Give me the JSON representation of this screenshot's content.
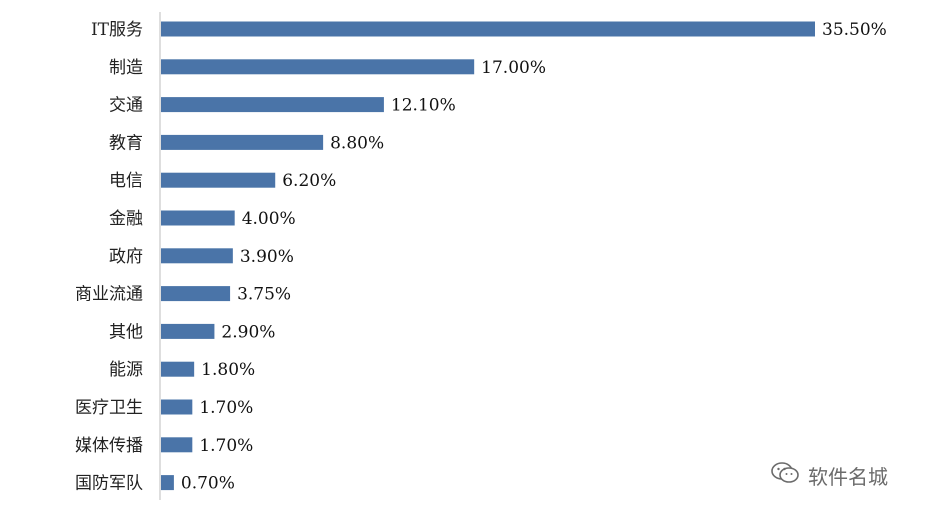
{
  "chart_data": {
    "type": "bar",
    "orientation": "horizontal",
    "categories": [
      "IT服务",
      "制造",
      "交通",
      "教育",
      "电信",
      "金融",
      "政府",
      "商业流通",
      "其他",
      "能源",
      "医疗卫生",
      "媒体传播",
      "国防军队"
    ],
    "values": [
      35.5,
      17.0,
      12.1,
      8.8,
      6.2,
      4.0,
      3.9,
      3.75,
      2.9,
      1.8,
      1.7,
      1.7,
      0.7
    ],
    "data_labels": [
      "35.50%",
      "17.00%",
      "12.10%",
      "8.80%",
      "6.20%",
      "4.00%",
      "3.90%",
      "3.75%",
      "2.90%",
      "1.80%",
      "1.70%",
      "1.70%",
      "0.70%"
    ],
    "unit": "%",
    "xlim": [
      0,
      35.5
    ],
    "grid": false,
    "legend": "none",
    "bar_color": "#4a74a8"
  },
  "watermark": {
    "icon": "wechat-icon",
    "text": "软件名城"
  }
}
